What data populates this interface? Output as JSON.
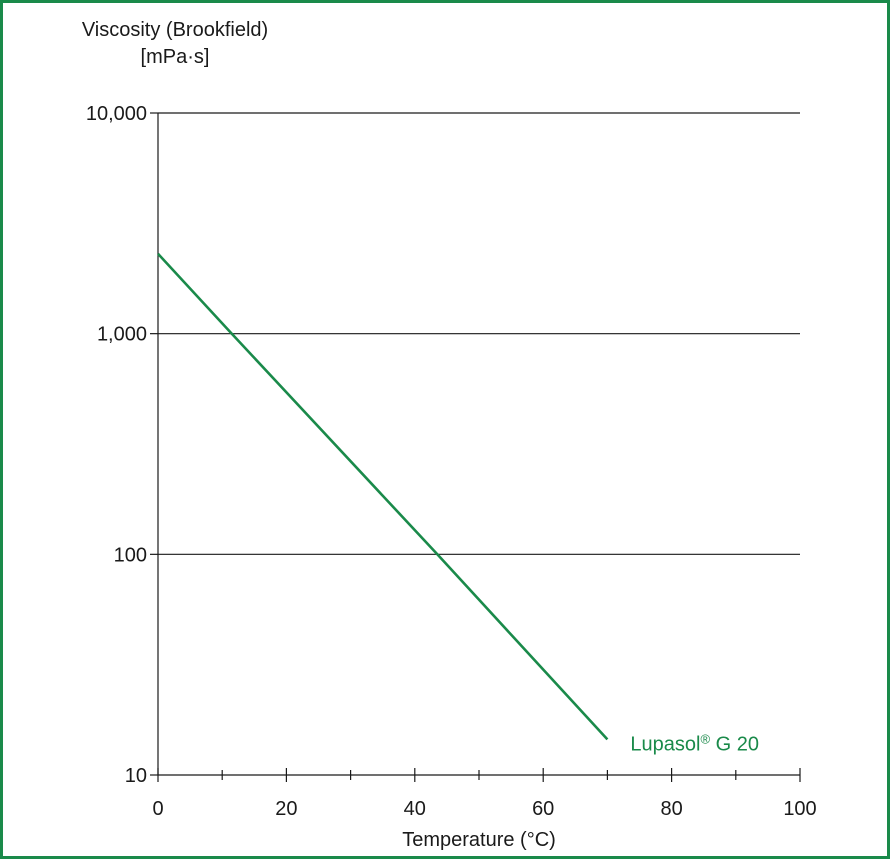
{
  "chart_data": {
    "type": "line",
    "ylabel_line1": "Viscosity (Brookfield)",
    "ylabel_line2": "[mPa·s]",
    "xlabel": "Temperature (°C)",
    "yscale": "log",
    "xlim": [
      0,
      100
    ],
    "ylim": [
      10,
      10000
    ],
    "x_ticks": [
      "0",
      "20",
      "40",
      "60",
      "80",
      "100"
    ],
    "y_ticks": [
      "10",
      "100",
      "1,000",
      "10,000"
    ],
    "grid": "horizontal",
    "series": [
      {
        "name": "Lupasol® G 20",
        "color": "#1a8a4a",
        "points": [
          {
            "x": 0,
            "y": 2300
          },
          {
            "x": 11.5,
            "y": 1000
          },
          {
            "x": 43.5,
            "y": 100
          },
          {
            "x": 70,
            "y": 14.5
          }
        ]
      }
    ]
  }
}
